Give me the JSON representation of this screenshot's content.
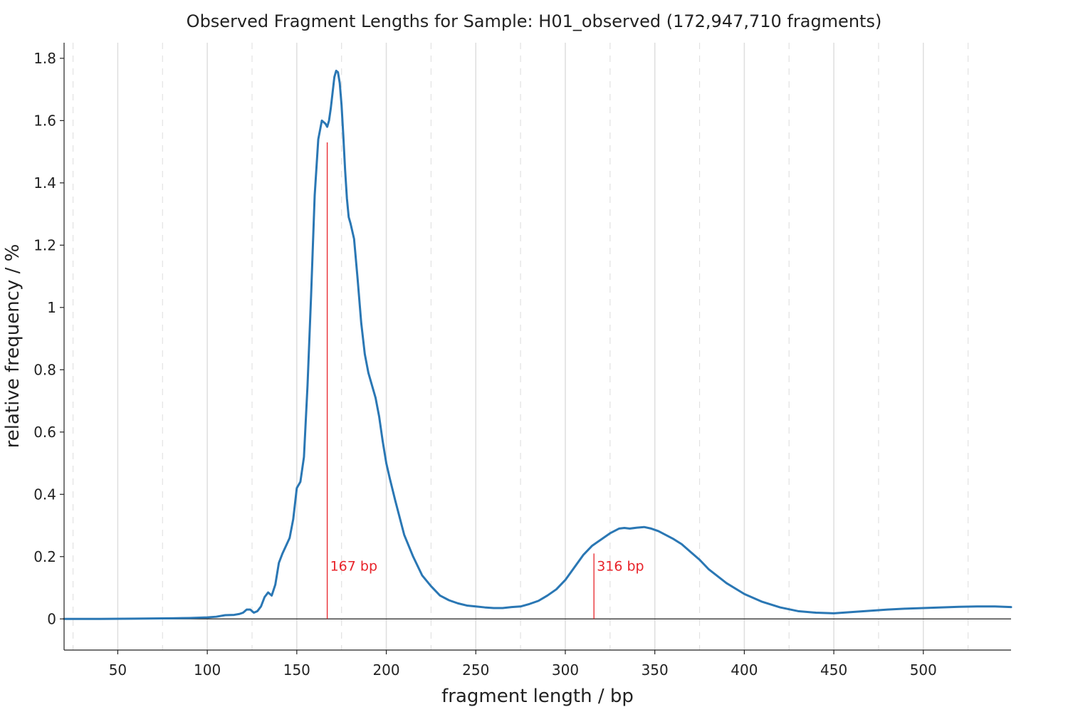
{
  "chart_data": {
    "type": "line",
    "title": "Observed Fragment Lengths for Sample: H01_observed (172,947,710 fragments)",
    "xlabel": "fragment length / bp",
    "ylabel": "relative frequency / %",
    "xlim": [
      20,
      549
    ],
    "ylim": [
      -0.1,
      1.85
    ],
    "x_ticks": [
      50,
      100,
      150,
      200,
      250,
      300,
      350,
      400,
      450,
      500
    ],
    "x_tick_labels": [
      "50",
      "100",
      "150",
      "200",
      "250",
      "300",
      "350",
      "400",
      "450",
      "500"
    ],
    "x_minor_ticks": [
      25,
      75,
      125,
      175,
      225,
      275,
      325,
      375,
      425,
      475,
      525
    ],
    "y_ticks": [
      0,
      0.2,
      0.4,
      0.6,
      0.8,
      1,
      1.2,
      1.4,
      1.6,
      1.8
    ],
    "y_tick_labels": [
      "0",
      "0.2",
      "0.4",
      "0.6",
      "0.8",
      "1",
      "1.2",
      "1.4",
      "1.6",
      "1.8"
    ],
    "grid": true,
    "line_color": "#2a77b4",
    "annotation_color": "#e8232a",
    "series": [
      {
        "x": [
          20,
          40,
          60,
          80,
          90,
          100,
          105,
          110,
          115,
          118,
          120,
          122,
          124,
          126,
          128,
          130,
          132,
          134,
          135,
          136,
          138,
          140,
          142,
          144,
          146,
          148,
          150,
          152,
          154,
          156,
          158,
          160,
          162,
          164,
          166,
          167,
          168,
          169,
          170,
          171,
          172,
          173,
          174,
          175,
          176,
          177,
          178,
          179,
          180,
          182,
          184,
          186,
          188,
          190,
          192,
          194,
          196,
          198,
          200,
          202,
          205,
          210,
          215,
          220,
          225,
          230,
          235,
          240,
          245,
          250,
          255,
          260,
          265,
          270,
          275,
          280,
          285,
          290,
          295,
          300,
          305,
          310,
          315,
          320,
          325,
          330,
          333,
          336,
          340,
          344,
          348,
          352,
          356,
          360,
          365,
          370,
          375,
          380,
          390,
          400,
          410,
          420,
          430,
          440,
          450,
          460,
          470,
          480,
          490,
          500,
          510,
          520,
          530,
          540,
          549
        ],
        "y": [
          0,
          0,
          0.001,
          0.002,
          0.003,
          0.005,
          0.007,
          0.012,
          0.013,
          0.016,
          0.02,
          0.03,
          0.03,
          0.02,
          0.025,
          0.04,
          0.07,
          0.085,
          0.08,
          0.075,
          0.11,
          0.18,
          0.21,
          0.235,
          0.26,
          0.32,
          0.42,
          0.44,
          0.52,
          0.75,
          1.04,
          1.36,
          1.54,
          1.6,
          1.59,
          1.58,
          1.6,
          1.64,
          1.69,
          1.74,
          1.76,
          1.755,
          1.72,
          1.65,
          1.55,
          1.44,
          1.35,
          1.29,
          1.27,
          1.22,
          1.09,
          0.95,
          0.85,
          0.79,
          0.75,
          0.71,
          0.65,
          0.57,
          0.5,
          0.45,
          0.38,
          0.27,
          0.2,
          0.14,
          0.105,
          0.075,
          0.06,
          0.05,
          0.043,
          0.04,
          0.037,
          0.035,
          0.035,
          0.038,
          0.04,
          0.048,
          0.058,
          0.075,
          0.095,
          0.125,
          0.165,
          0.205,
          0.235,
          0.255,
          0.275,
          0.29,
          0.292,
          0.29,
          0.293,
          0.295,
          0.29,
          0.282,
          0.27,
          0.258,
          0.24,
          0.215,
          0.19,
          0.16,
          0.115,
          0.08,
          0.055,
          0.037,
          0.025,
          0.02,
          0.018,
          0.022,
          0.026,
          0.03,
          0.033,
          0.035,
          0.037,
          0.039,
          0.04,
          0.04,
          0.038
        ]
      }
    ],
    "annotations": [
      {
        "x": 167,
        "y": 1.53,
        "label": "167 bp"
      },
      {
        "x": 316,
        "y": 0.21,
        "label": "316 bp"
      }
    ]
  }
}
